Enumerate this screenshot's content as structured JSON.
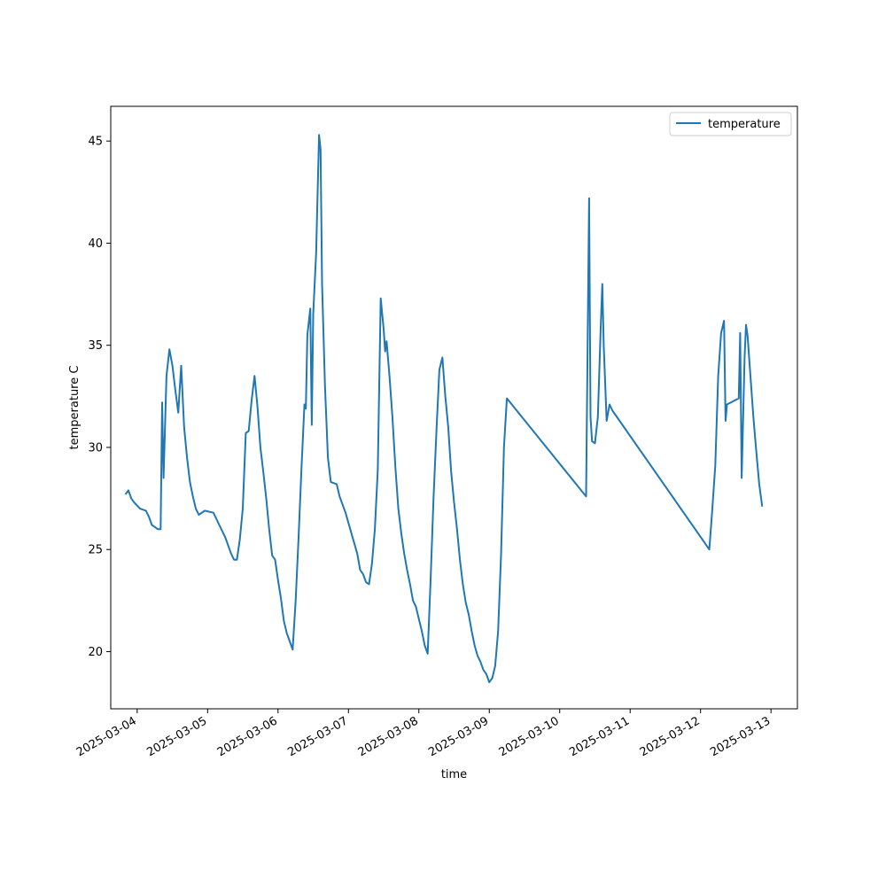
{
  "chart_data": {
    "type": "line",
    "title": "",
    "xlabel": "time",
    "ylabel": "temperature C",
    "x_axis_type": "date",
    "xlim": [
      "2025-03-03T15:00",
      "2025-03-13T09:00"
    ],
    "ylim": [
      17.2,
      46.7
    ],
    "x_ticks": [
      "2025-03-04",
      "2025-03-05",
      "2025-03-06",
      "2025-03-07",
      "2025-03-08",
      "2025-03-09",
      "2025-03-10",
      "2025-03-11",
      "2025-03-12",
      "2025-03-13"
    ],
    "y_ticks": [
      20,
      25,
      30,
      35,
      40,
      45
    ],
    "grid": false,
    "legend_position": "top-right",
    "colors": {
      "line": "#1f77b4",
      "axis": "#000000",
      "legend_border": "#cccccc"
    },
    "series": [
      {
        "name": "temperature",
        "points": [
          [
            "2025-03-03T20:00",
            27.7
          ],
          [
            "2025-03-03T21:00",
            27.9
          ],
          [
            "2025-03-03T22:00",
            27.5
          ],
          [
            "2025-03-03T23:00",
            27.3
          ],
          [
            "2025-03-04T01:00",
            27.0
          ],
          [
            "2025-03-04T03:00",
            26.9
          ],
          [
            "2025-03-04T04:00",
            26.6
          ],
          [
            "2025-03-04T05:00",
            26.2
          ],
          [
            "2025-03-04T06:00",
            26.1
          ],
          [
            "2025-03-04T07:00",
            26.0
          ],
          [
            "2025-03-04T08:00",
            26.0
          ],
          [
            "2025-03-04T08:30",
            32.2
          ],
          [
            "2025-03-04T09:00",
            28.5
          ],
          [
            "2025-03-04T10:00",
            33.5
          ],
          [
            "2025-03-04T11:00",
            34.8
          ],
          [
            "2025-03-04T12:00",
            34.0
          ],
          [
            "2025-03-04T13:00",
            32.8
          ],
          [
            "2025-03-04T14:00",
            31.7
          ],
          [
            "2025-03-04T15:00",
            34.0
          ],
          [
            "2025-03-04T16:00",
            31.0
          ],
          [
            "2025-03-04T17:00",
            29.5
          ],
          [
            "2025-03-04T18:00",
            28.3
          ],
          [
            "2025-03-04T19:00",
            27.6
          ],
          [
            "2025-03-04T20:00",
            27.0
          ],
          [
            "2025-03-04T21:00",
            26.7
          ],
          [
            "2025-03-04T23:00",
            26.9
          ],
          [
            "2025-03-05T02:00",
            26.8
          ],
          [
            "2025-03-05T04:00",
            26.2
          ],
          [
            "2025-03-05T06:00",
            25.6
          ],
          [
            "2025-03-05T08:00",
            24.8
          ],
          [
            "2025-03-05T09:00",
            24.5
          ],
          [
            "2025-03-05T10:00",
            24.5
          ],
          [
            "2025-03-05T11:00",
            25.5
          ],
          [
            "2025-03-05T12:00",
            27.0
          ],
          [
            "2025-03-05T13:00",
            30.7
          ],
          [
            "2025-03-05T14:00",
            30.8
          ],
          [
            "2025-03-05T15:00",
            32.3
          ],
          [
            "2025-03-05T16:00",
            33.5
          ],
          [
            "2025-03-05T17:00",
            32.0
          ],
          [
            "2025-03-05T18:00",
            30.0
          ],
          [
            "2025-03-05T19:00",
            28.8
          ],
          [
            "2025-03-05T20:00",
            27.5
          ],
          [
            "2025-03-05T21:00",
            26.0
          ],
          [
            "2025-03-05T22:00",
            24.7
          ],
          [
            "2025-03-05T23:00",
            24.5
          ],
          [
            "2025-03-06T00:00",
            23.5
          ],
          [
            "2025-03-06T01:00",
            22.6
          ],
          [
            "2025-03-06T02:00",
            21.5
          ],
          [
            "2025-03-06T03:00",
            20.9
          ],
          [
            "2025-03-06T04:00",
            20.5
          ],
          [
            "2025-03-06T05:00",
            20.1
          ],
          [
            "2025-03-06T06:00",
            22.5
          ],
          [
            "2025-03-06T07:00",
            25.6
          ],
          [
            "2025-03-06T08:00",
            29.0
          ],
          [
            "2025-03-06T09:00",
            32.1
          ],
          [
            "2025-03-06T09:30",
            31.9
          ],
          [
            "2025-03-06T10:00",
            35.5
          ],
          [
            "2025-03-06T11:00",
            36.8
          ],
          [
            "2025-03-06T11:30",
            31.1
          ],
          [
            "2025-03-06T12:00",
            36.5
          ],
          [
            "2025-03-06T13:00",
            39.5
          ],
          [
            "2025-03-06T14:00",
            45.3
          ],
          [
            "2025-03-06T14:30",
            44.6
          ],
          [
            "2025-03-06T15:00",
            38.0
          ],
          [
            "2025-03-06T16:00",
            33.0
          ],
          [
            "2025-03-06T17:00",
            29.5
          ],
          [
            "2025-03-06T18:00",
            28.3
          ],
          [
            "2025-03-06T20:00",
            28.2
          ],
          [
            "2025-03-06T21:00",
            27.6
          ],
          [
            "2025-03-06T23:00",
            26.8
          ],
          [
            "2025-03-07T01:00",
            25.8
          ],
          [
            "2025-03-07T02:00",
            25.3
          ],
          [
            "2025-03-07T03:00",
            24.8
          ],
          [
            "2025-03-07T04:00",
            24.0
          ],
          [
            "2025-03-07T05:00",
            23.8
          ],
          [
            "2025-03-07T06:00",
            23.4
          ],
          [
            "2025-03-07T07:00",
            23.3
          ],
          [
            "2025-03-07T08:00",
            24.3
          ],
          [
            "2025-03-07T09:00",
            26.0
          ],
          [
            "2025-03-07T10:00",
            28.9
          ],
          [
            "2025-03-07T11:00",
            37.3
          ],
          [
            "2025-03-07T12:00",
            35.8
          ],
          [
            "2025-03-07T12:30",
            34.7
          ],
          [
            "2025-03-07T13:00",
            35.2
          ],
          [
            "2025-03-07T14:00",
            33.5
          ],
          [
            "2025-03-07T15:00",
            31.5
          ],
          [
            "2025-03-07T16:00",
            29.0
          ],
          [
            "2025-03-07T17:00",
            27.0
          ],
          [
            "2025-03-07T18:00",
            25.8
          ],
          [
            "2025-03-07T19:00",
            24.8
          ],
          [
            "2025-03-07T20:00",
            24.0
          ],
          [
            "2025-03-07T21:00",
            23.3
          ],
          [
            "2025-03-07T22:00",
            22.5
          ],
          [
            "2025-03-07T23:00",
            22.2
          ],
          [
            "2025-03-08T01:00",
            21.0
          ],
          [
            "2025-03-08T02:00",
            20.3
          ],
          [
            "2025-03-08T03:00",
            19.9
          ],
          [
            "2025-03-08T04:00",
            23.5
          ],
          [
            "2025-03-08T05:00",
            27.5
          ],
          [
            "2025-03-08T06:00",
            30.8
          ],
          [
            "2025-03-08T07:00",
            33.8
          ],
          [
            "2025-03-08T08:00",
            34.4
          ],
          [
            "2025-03-08T09:00",
            32.5
          ],
          [
            "2025-03-08T10:00",
            31.0
          ],
          [
            "2025-03-08T11:00",
            28.8
          ],
          [
            "2025-03-08T12:00",
            27.3
          ],
          [
            "2025-03-08T13:00",
            26.0
          ],
          [
            "2025-03-08T14:00",
            24.5
          ],
          [
            "2025-03-08T15:00",
            23.3
          ],
          [
            "2025-03-08T16:00",
            22.4
          ],
          [
            "2025-03-08T17:00",
            21.8
          ],
          [
            "2025-03-08T18:00",
            21.0
          ],
          [
            "2025-03-08T19:00",
            20.3
          ],
          [
            "2025-03-08T20:00",
            19.8
          ],
          [
            "2025-03-08T21:00",
            19.5
          ],
          [
            "2025-03-08T22:00",
            19.1
          ],
          [
            "2025-03-08T23:00",
            18.9
          ],
          [
            "2025-03-09T00:00",
            18.5
          ],
          [
            "2025-03-09T01:00",
            18.7
          ],
          [
            "2025-03-09T02:00",
            19.3
          ],
          [
            "2025-03-09T03:00",
            21.0
          ],
          [
            "2025-03-09T04:00",
            24.7
          ],
          [
            "2025-03-09T05:00",
            30.0
          ],
          [
            "2025-03-09T06:00",
            32.4
          ],
          [
            "2025-03-10T09:00",
            27.6
          ],
          [
            "2025-03-10T10:00",
            42.2
          ],
          [
            "2025-03-10T10:30",
            31.5
          ],
          [
            "2025-03-10T11:00",
            30.3
          ],
          [
            "2025-03-10T12:00",
            30.2
          ],
          [
            "2025-03-10T13:00",
            31.5
          ],
          [
            "2025-03-10T14:00",
            36.0
          ],
          [
            "2025-03-10T14:30",
            38.0
          ],
          [
            "2025-03-10T15:00",
            35.0
          ],
          [
            "2025-03-10T16:00",
            31.3
          ],
          [
            "2025-03-10T17:00",
            32.1
          ],
          [
            "2025-03-10T18:00",
            31.8
          ],
          [
            "2025-03-12T03:00",
            25.0
          ],
          [
            "2025-03-12T04:00",
            27.0
          ],
          [
            "2025-03-12T05:00",
            29.1
          ],
          [
            "2025-03-12T06:00",
            33.5
          ],
          [
            "2025-03-12T07:00",
            35.6
          ],
          [
            "2025-03-12T08:00",
            36.2
          ],
          [
            "2025-03-12T08:30",
            31.3
          ],
          [
            "2025-03-12T09:00",
            32.1
          ],
          [
            "2025-03-12T13:00",
            32.4
          ],
          [
            "2025-03-12T13:30",
            35.6
          ],
          [
            "2025-03-12T14:00",
            28.5
          ],
          [
            "2025-03-12T15:00",
            34.4
          ],
          [
            "2025-03-12T15:30",
            36.0
          ],
          [
            "2025-03-12T16:00",
            35.5
          ],
          [
            "2025-03-12T17:00",
            33.5
          ],
          [
            "2025-03-12T18:00",
            31.5
          ],
          [
            "2025-03-12T19:00",
            29.8
          ],
          [
            "2025-03-12T20:00",
            28.2
          ],
          [
            "2025-03-12T21:00",
            27.1
          ]
        ]
      }
    ]
  }
}
